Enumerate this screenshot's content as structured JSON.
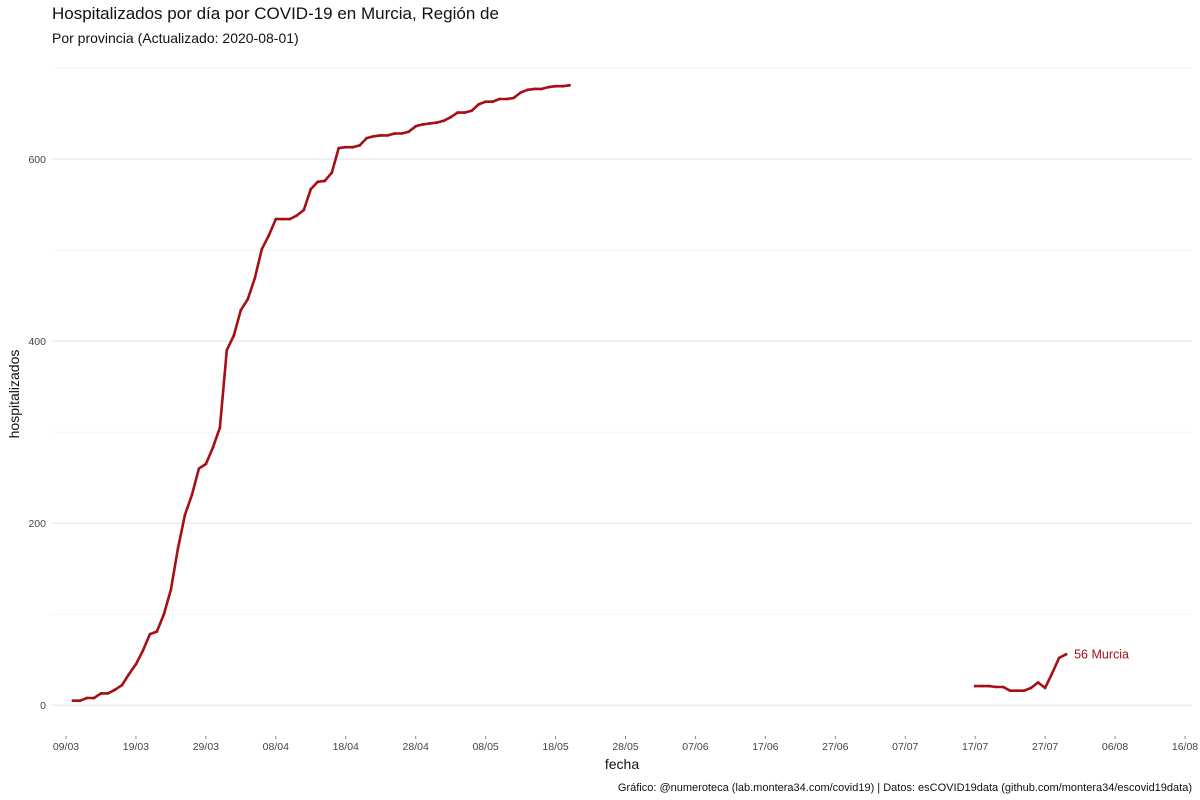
{
  "chart_data": {
    "type": "line",
    "title": "Hospitalizados por día por COVID-19 en Murcia, Región de",
    "subtitle": "Por provincia  (Actualizado: 2020-08-01)",
    "xlabel": "fecha",
    "ylabel": "hospitalizados",
    "caption": "Gráfico: @numeroteca (lab.montera34.com/covid19) | Datos: esCOVID19data (github.com/montera34/escovid19data)",
    "x_axis": {
      "type": "date",
      "range": [
        "2020-03-07",
        "2020-08-17"
      ],
      "ticks": [
        "2020-03-09",
        "2020-03-19",
        "2020-03-29",
        "2020-04-08",
        "2020-04-18",
        "2020-04-28",
        "2020-05-08",
        "2020-05-18",
        "2020-05-28",
        "2020-06-07",
        "2020-06-17",
        "2020-06-27",
        "2020-07-07",
        "2020-07-17",
        "2020-07-27",
        "2020-08-06",
        "2020-08-16"
      ],
      "tick_labels": [
        "09/03",
        "19/03",
        "29/03",
        "08/04",
        "18/04",
        "28/04",
        "08/05",
        "18/05",
        "28/05",
        "07/06",
        "17/06",
        "27/06",
        "07/07",
        "17/07",
        "27/07",
        "06/08",
        "16/08"
      ]
    },
    "y_axis": {
      "range": [
        -25,
        700
      ],
      "ticks": [
        0,
        200,
        400,
        600
      ],
      "tick_labels": [
        "0",
        "200",
        "400",
        "600"
      ]
    },
    "grid": true,
    "legend": "none",
    "end_label": "56 Murcia",
    "series": [
      {
        "name": "Murcia",
        "color": "#a50f15",
        "segments": [
          [
            [
              "2020-03-10",
              5
            ],
            [
              "2020-03-11",
              5
            ],
            [
              "2020-03-12",
              8
            ],
            [
              "2020-03-13",
              8
            ],
            [
              "2020-03-14",
              13
            ],
            [
              "2020-03-15",
              13
            ],
            [
              "2020-03-16",
              17
            ],
            [
              "2020-03-17",
              22
            ],
            [
              "2020-03-18",
              34
            ],
            [
              "2020-03-19",
              45
            ],
            [
              "2020-03-20",
              60
            ],
            [
              "2020-03-21",
              78
            ],
            [
              "2020-03-22",
              81
            ],
            [
              "2020-03-23",
              100
            ],
            [
              "2020-03-24",
              127
            ],
            [
              "2020-03-25",
              172
            ],
            [
              "2020-03-26",
              209
            ],
            [
              "2020-03-27",
              231
            ],
            [
              "2020-03-28",
              260
            ],
            [
              "2020-03-29",
              265
            ],
            [
              "2020-03-30",
              283
            ],
            [
              "2020-03-31",
              305
            ],
            [
              "2020-04-01",
              390
            ],
            [
              "2020-04-02",
              406
            ],
            [
              "2020-04-03",
              434
            ],
            [
              "2020-04-04",
              446
            ],
            [
              "2020-04-05",
              469
            ],
            [
              "2020-04-06",
              501
            ],
            [
              "2020-04-07",
              516
            ],
            [
              "2020-04-08",
              534
            ],
            [
              "2020-04-09",
              534
            ],
            [
              "2020-04-10",
              534
            ],
            [
              "2020-04-11",
              538
            ],
            [
              "2020-04-12",
              544
            ],
            [
              "2020-04-13",
              567
            ],
            [
              "2020-04-14",
              575
            ],
            [
              "2020-04-15",
              576
            ],
            [
              "2020-04-16",
              585
            ],
            [
              "2020-04-17",
              612
            ],
            [
              "2020-04-18",
              613
            ],
            [
              "2020-04-19",
              613
            ],
            [
              "2020-04-20",
              615
            ],
            [
              "2020-04-21",
              623
            ],
            [
              "2020-04-22",
              625
            ],
            [
              "2020-04-23",
              626
            ],
            [
              "2020-04-24",
              626
            ],
            [
              "2020-04-25",
              628
            ],
            [
              "2020-04-26",
              628
            ],
            [
              "2020-04-27",
              630
            ],
            [
              "2020-04-28",
              636
            ],
            [
              "2020-04-29",
              638
            ],
            [
              "2020-04-30",
              639
            ],
            [
              "2020-05-01",
              640
            ],
            [
              "2020-05-02",
              642
            ],
            [
              "2020-05-03",
              646
            ],
            [
              "2020-05-04",
              651
            ],
            [
              "2020-05-05",
              651
            ],
            [
              "2020-05-06",
              653
            ],
            [
              "2020-05-07",
              660
            ],
            [
              "2020-05-08",
              663
            ],
            [
              "2020-05-09",
              663
            ],
            [
              "2020-05-10",
              666
            ],
            [
              "2020-05-11",
              666
            ],
            [
              "2020-05-12",
              667
            ],
            [
              "2020-05-13",
              673
            ],
            [
              "2020-05-14",
              676
            ],
            [
              "2020-05-15",
              677
            ],
            [
              "2020-05-16",
              677
            ],
            [
              "2020-05-17",
              679
            ],
            [
              "2020-05-18",
              680
            ],
            [
              "2020-05-19",
              680
            ],
            [
              "2020-05-20",
              681
            ]
          ],
          [
            [
              "2020-07-17",
              21
            ],
            [
              "2020-07-18",
              21
            ],
            [
              "2020-07-19",
              21
            ],
            [
              "2020-07-20",
              20
            ],
            [
              "2020-07-21",
              20
            ],
            [
              "2020-07-22",
              16
            ],
            [
              "2020-07-23",
              16
            ],
            [
              "2020-07-24",
              16
            ],
            [
              "2020-07-25",
              19
            ],
            [
              "2020-07-26",
              25
            ],
            [
              "2020-07-27",
              19
            ],
            [
              "2020-07-28",
              35
            ],
            [
              "2020-07-29",
              52
            ],
            [
              "2020-07-30",
              56
            ]
          ]
        ]
      }
    ]
  }
}
